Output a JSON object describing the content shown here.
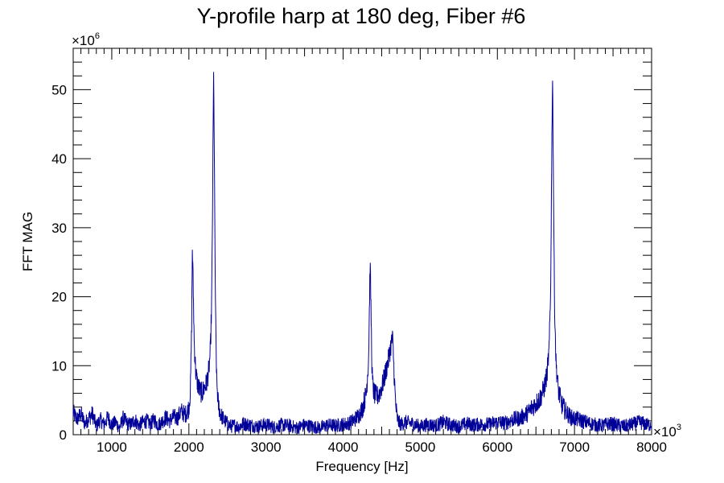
{
  "chart_data": {
    "type": "line",
    "title": "Y-profile harp at 180 deg, Fiber #6",
    "xlabel": "Frequency [Hz]",
    "ylabel": "FFT MAG",
    "x_multiplier_label": "×10",
    "x_multiplier_exp": "3",
    "y_multiplier_label": "×10",
    "y_multiplier_exp": "6",
    "xlim": [
      500,
      8000
    ],
    "ylim": [
      0,
      56
    ],
    "x_ticks": [
      1000,
      2000,
      3000,
      4000,
      5000,
      6000,
      7000,
      8000
    ],
    "x_tick_labels": [
      "1000",
      "2000",
      "3000",
      "4000",
      "5000",
      "6000",
      "7000",
      "8000"
    ],
    "y_ticks": [
      0,
      10,
      20,
      30,
      40,
      50
    ],
    "y_tick_labels": [
      "0",
      "10",
      "20",
      "30",
      "40",
      "50"
    ],
    "grid": false,
    "legend": "none",
    "line_color": "#000099",
    "series": [
      {
        "x": [
          500,
          550,
          600,
          650,
          700,
          750,
          800,
          850,
          900,
          950,
          1000,
          1050,
          1100,
          1150,
          1200,
          1250,
          1300,
          1350,
          1400,
          1450,
          1500,
          1550,
          1600,
          1650,
          1700,
          1750,
          1800,
          1850,
          1900,
          1950,
          1990,
          2000,
          2020,
          2035,
          2045,
          2055,
          2070,
          2090,
          2110,
          2140,
          2170,
          2200,
          2230,
          2260,
          2280,
          2295,
          2305,
          2315,
          2322,
          2330,
          2345,
          2360,
          2380,
          2410,
          2450,
          2500,
          2550,
          2600,
          2650,
          2700,
          2800,
          2900,
          3000,
          3100,
          3200,
          3300,
          3400,
          3500,
          3600,
          3700,
          3800,
          3900,
          4000,
          4050,
          4100,
          4150,
          4200,
          4250,
          4300,
          4330,
          4350,
          4362,
          4375,
          4390,
          4410,
          4440,
          4470,
          4510,
          4550,
          4590,
          4620,
          4640,
          4650,
          4665,
          4680,
          4700,
          4720,
          4750,
          4800,
          4900,
          5000,
          5100,
          5200,
          5300,
          5400,
          5500,
          5600,
          5700,
          5800,
          5900,
          6000,
          6100,
          6200,
          6300,
          6400,
          6450,
          6500,
          6550,
          6600,
          6640,
          6670,
          6690,
          6705,
          6715,
          6725,
          6740,
          6760,
          6790,
          6830,
          6880,
          6950,
          7050,
          7150,
          7250,
          7350,
          7450,
          7550,
          7650,
          7750,
          7850,
          7950,
          8000
        ],
        "y": [
          3.2,
          2.2,
          3.0,
          1.6,
          2.4,
          3.0,
          1.2,
          2.2,
          1.5,
          2.5,
          1.4,
          1.8,
          1.0,
          2.4,
          1.6,
          1.5,
          2.2,
          1.3,
          1.8,
          2.0,
          1.5,
          2.2,
          1.4,
          1.9,
          2.5,
          2.0,
          2.6,
          2.4,
          3.4,
          2.9,
          3.6,
          4.0,
          6.5,
          15.0,
          27.0,
          22.0,
          13.0,
          9.0,
          7.5,
          6.5,
          6.0,
          6.8,
          7.5,
          9.5,
          12.5,
          19.0,
          30.0,
          45.0,
          53.0,
          40.0,
          18.0,
          8.0,
          4.5,
          3.0,
          2.2,
          1.6,
          1.2,
          1.4,
          1.1,
          1.6,
          1.4,
          1.2,
          1.5,
          1.1,
          1.4,
          1.3,
          1.0,
          1.4,
          1.2,
          1.0,
          1.4,
          1.3,
          1.5,
          1.6,
          1.8,
          2.2,
          2.8,
          3.8,
          6.0,
          11.0,
          25.0,
          18.0,
          9.0,
          6.5,
          5.8,
          5.5,
          6.0,
          7.2,
          9.0,
          11.0,
          13.0,
          14.0,
          12.0,
          8.0,
          4.5,
          2.5,
          1.8,
          1.5,
          1.8,
          1.6,
          1.2,
          1.5,
          1.3,
          1.8,
          1.4,
          1.2,
          1.6,
          1.4,
          1.5,
          1.5,
          1.8,
          1.7,
          2.2,
          2.4,
          3.2,
          4.0,
          4.5,
          5.2,
          6.5,
          8.5,
          12.0,
          20.0,
          40.0,
          53.0,
          40.0,
          20.0,
          10.5,
          6.5,
          4.5,
          3.5,
          2.5,
          2.2,
          1.8,
          1.5,
          1.3,
          1.6,
          1.4,
          1.2,
          1.5,
          1.8,
          1.4,
          1.6
        ]
      }
    ]
  }
}
